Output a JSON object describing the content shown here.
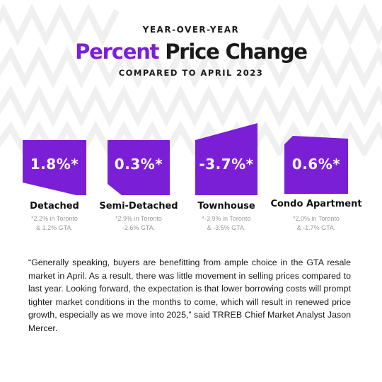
{
  "header": {
    "eyebrow": "YEAR-OVER-YEAR",
    "title_accent": "Percent",
    "title_rest": "Price Change",
    "subtitle": "COMPARED TO APRIL 2023"
  },
  "colors": {
    "accent": "#7a1fd6",
    "card": "#7a1fd6",
    "text": "#1a1a1a",
    "muted": "#9a9a9a"
  },
  "cards": [
    {
      "value": "1.8%*",
      "label": "Detached",
      "note_line1": "*2.2% in Toronto",
      "note_line2": "& 1.2% GTA."
    },
    {
      "value": "0.3%*",
      "label": "Semi-Detached",
      "note_line1": "*2.9% in Toronto",
      "note_line2": "-2.6% GTA."
    },
    {
      "value": "-3.7%*",
      "label": "Townhouse",
      "note_line1": "*-3.9% in Toronto",
      "note_line2": "& -3.5% GTA."
    },
    {
      "value": "0.6%*",
      "label": "Condo Apartment",
      "note_line1": "*2.0% in Toronto",
      "note_line2": "& -1.7% GTA."
    }
  ],
  "quote": {
    "text": "“Generally speaking, buyers are benefitting from ample choice in the GTA resale market in April. As a result, there was little movement in selling prices compared to last year. Looking forward, the expectation is that lower borrowing costs will prompt tighter market conditions in the months to come, which will result in renewed price growth, especially as we move into 2025,” said TRREB Chief Market Analyst Jason Mercer."
  }
}
